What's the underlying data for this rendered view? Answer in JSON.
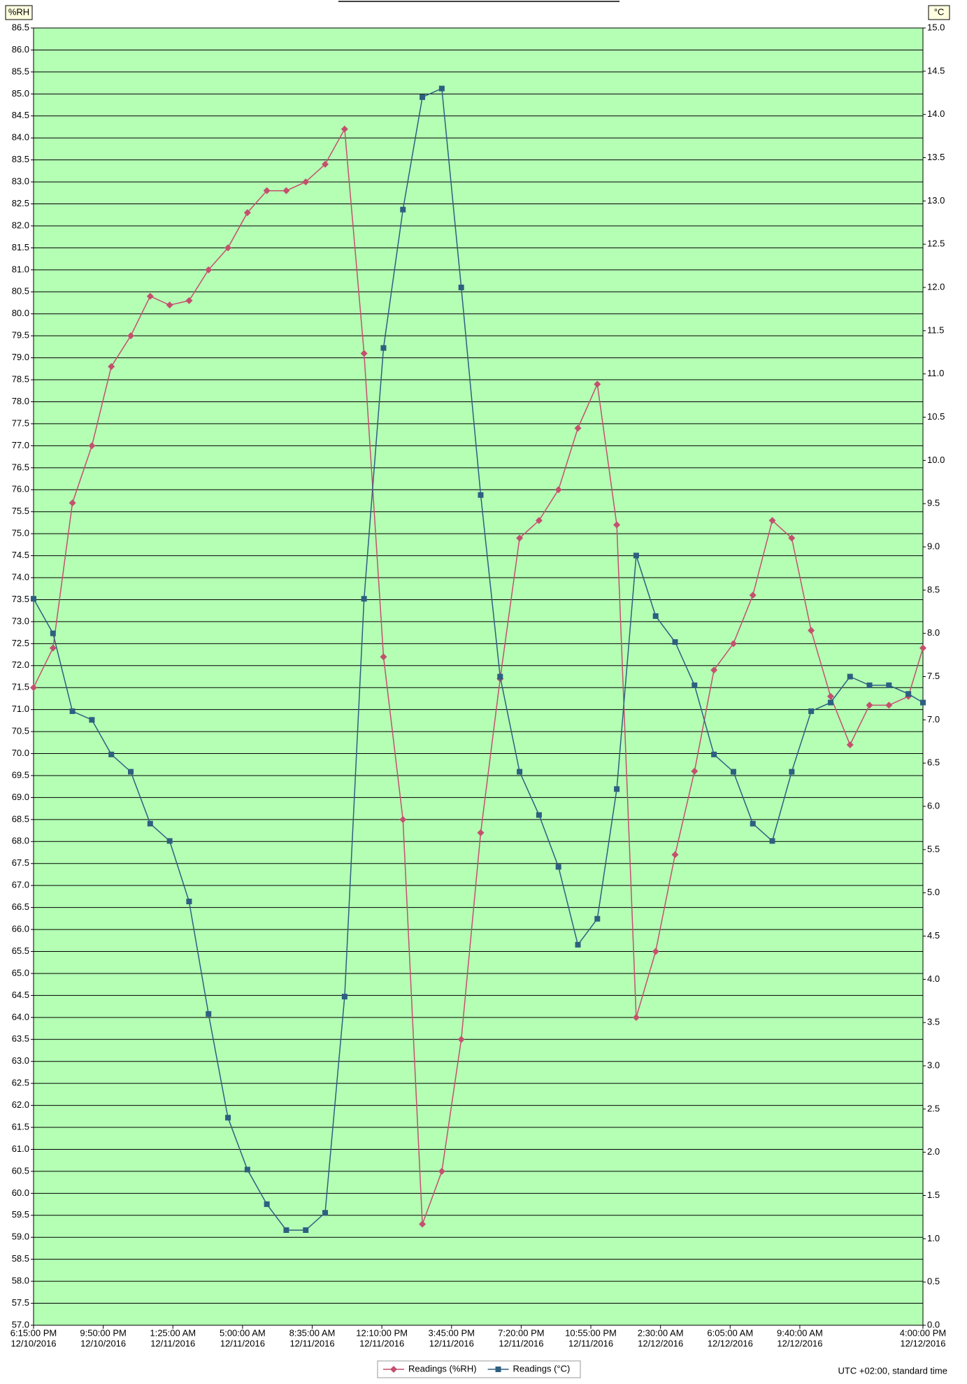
{
  "chart_data": {
    "type": "line",
    "ylabel": "%RH",
    "y2label": "°C",
    "annotation": "UTC +02:00, standard time",
    "legend": "bottom",
    "grid": true,
    "plot_background": "#b4ffb4",
    "x": [
      "2016-12-10 18:15",
      "2016-12-10 19:15",
      "2016-12-10 20:15",
      "2016-12-10 21:15",
      "2016-12-10 22:15",
      "2016-12-10 23:15",
      "2016-12-11 00:15",
      "2016-12-11 01:15",
      "2016-12-11 02:15",
      "2016-12-11 03:15",
      "2016-12-11 04:15",
      "2016-12-11 05:15",
      "2016-12-11 06:15",
      "2016-12-11 07:15",
      "2016-12-11 08:15",
      "2016-12-11 09:15",
      "2016-12-11 10:15",
      "2016-12-11 11:15",
      "2016-12-11 12:15",
      "2016-12-11 13:15",
      "2016-12-11 14:15",
      "2016-12-11 15:15",
      "2016-12-11 16:15",
      "2016-12-11 17:15",
      "2016-12-11 18:15",
      "2016-12-11 19:15",
      "2016-12-11 20:15",
      "2016-12-11 21:15",
      "2016-12-11 22:15",
      "2016-12-11 23:15",
      "2016-12-12 00:15",
      "2016-12-12 01:15",
      "2016-12-12 02:15",
      "2016-12-12 03:15",
      "2016-12-12 04:15",
      "2016-12-12 05:15",
      "2016-12-12 06:15",
      "2016-12-12 07:15",
      "2016-12-12 08:15",
      "2016-12-12 09:15",
      "2016-12-12 10:15",
      "2016-12-12 11:15",
      "2016-12-12 12:15",
      "2016-12-12 13:15",
      "2016-12-12 14:15",
      "2016-12-12 15:15",
      "2016-12-12 16:00"
    ],
    "series": [
      {
        "name": "Readings (%RH)",
        "color": "#c4506e",
        "marker": "diamond",
        "values": [
          71.5,
          72.4,
          75.7,
          77.0,
          78.8,
          79.5,
          80.4,
          80.2,
          80.3,
          81.0,
          81.5,
          82.3,
          82.8,
          82.8,
          83.0,
          83.4,
          84.2,
          79.1,
          72.2,
          68.5,
          59.3,
          60.5,
          63.5,
          68.2,
          71.7,
          74.9,
          75.3,
          76.0,
          77.4,
          78.4,
          75.2,
          64.0,
          65.5,
          67.7,
          69.6,
          71.9,
          72.5,
          73.6,
          75.3,
          74.9,
          72.8,
          71.3,
          70.2,
          71.1,
          71.1,
          71.3,
          72.4
        ]
      },
      {
        "name": "Readings (°C)",
        "color": "#2e5f80",
        "marker": "square",
        "axis": "y2",
        "values": [
          8.4,
          8.0,
          7.1,
          7.0,
          6.6,
          6.4,
          5.8,
          5.6,
          4.9,
          3.6,
          2.4,
          1.8,
          1.4,
          1.1,
          1.1,
          1.3,
          3.8,
          8.4,
          11.3,
          12.9,
          14.2,
          14.3,
          12.0,
          9.6,
          7.5,
          6.4,
          5.9,
          5.3,
          4.4,
          4.7,
          6.2,
          8.9,
          8.2,
          7.9,
          7.4,
          6.6,
          6.4,
          5.8,
          5.6,
          6.4,
          7.1,
          7.2,
          7.5,
          7.4,
          7.4,
          7.3,
          7.2
        ]
      }
    ],
    "xlim": [
      "2016-12-10 18:15",
      "2016-12-12 16:00"
    ],
    "xticks": [
      {
        "value": "2016-12-10 18:15",
        "label": [
          "6:15:00 PM",
          "12/10/2016"
        ]
      },
      {
        "value": "2016-12-10 21:50",
        "label": [
          "9:50:00 PM",
          "12/10/2016"
        ]
      },
      {
        "value": "2016-12-11 01:25",
        "label": [
          "1:25:00 AM",
          "12/11/2016"
        ]
      },
      {
        "value": "2016-12-11 05:00",
        "label": [
          "5:00:00 AM",
          "12/11/2016"
        ]
      },
      {
        "value": "2016-12-11 08:35",
        "label": [
          "8:35:00 AM",
          "12/11/2016"
        ]
      },
      {
        "value": "2016-12-11 12:10",
        "label": [
          "12:10:00 PM",
          "12/11/2016"
        ]
      },
      {
        "value": "2016-12-11 15:45",
        "label": [
          "3:45:00 PM",
          "12/11/2016"
        ]
      },
      {
        "value": "2016-12-11 19:20",
        "label": [
          "7:20:00 PM",
          "12/11/2016"
        ]
      },
      {
        "value": "2016-12-11 22:55",
        "label": [
          "10:55:00 PM",
          "12/11/2016"
        ]
      },
      {
        "value": "2016-12-12 02:30",
        "label": [
          "2:30:00 AM",
          "12/12/2016"
        ]
      },
      {
        "value": "2016-12-12 06:05",
        "label": [
          "6:05:00 AM",
          "12/12/2016"
        ]
      },
      {
        "value": "2016-12-12 09:40",
        "label": [
          "9:40:00 AM",
          "12/12/2016"
        ]
      },
      {
        "value": "2016-12-12 16:00",
        "label": [
          "4:00:00 PM",
          "12/12/2016"
        ]
      }
    ],
    "ylim": [
      57,
      86.5
    ],
    "yticks": [
      {
        "value": 57,
        "label": "57.0"
      },
      {
        "value": 57.5,
        "label": "57.5"
      },
      {
        "value": 58,
        "label": "58.0"
      },
      {
        "value": 58.5,
        "label": "58.5"
      },
      {
        "value": 59,
        "label": "59.0"
      },
      {
        "value": 59.5,
        "label": "59.5"
      },
      {
        "value": 60,
        "label": "60.0"
      },
      {
        "value": 60.5,
        "label": "60.5"
      },
      {
        "value": 61,
        "label": "61.0"
      },
      {
        "value": 61.5,
        "label": "61.5"
      },
      {
        "value": 62,
        "label": "62.0"
      },
      {
        "value": 62.5,
        "label": "62.5"
      },
      {
        "value": 63,
        "label": "63.0"
      },
      {
        "value": 63.5,
        "label": "63.5"
      },
      {
        "value": 64,
        "label": "64.0"
      },
      {
        "value": 64.5,
        "label": "64.5"
      },
      {
        "value": 65,
        "label": "65.0"
      },
      {
        "value": 65.5,
        "label": "65.5"
      },
      {
        "value": 66,
        "label": "66.0"
      },
      {
        "value": 66.5,
        "label": "66.5"
      },
      {
        "value": 67,
        "label": "67.0"
      },
      {
        "value": 67.5,
        "label": "67.5"
      },
      {
        "value": 68,
        "label": "68.0"
      },
      {
        "value": 68.5,
        "label": "68.5"
      },
      {
        "value": 69,
        "label": "69.0"
      },
      {
        "value": 69.5,
        "label": "69.5"
      },
      {
        "value": 70,
        "label": "70.0"
      },
      {
        "value": 70.5,
        "label": "70.5"
      },
      {
        "value": 71,
        "label": "71.0"
      },
      {
        "value": 71.5,
        "label": "71.5"
      },
      {
        "value": 72,
        "label": "72.0"
      },
      {
        "value": 72.5,
        "label": "72.5"
      },
      {
        "value": 73,
        "label": "73.0"
      },
      {
        "value": 73.5,
        "label": "73.5"
      },
      {
        "value": 74,
        "label": "74.0"
      },
      {
        "value": 74.5,
        "label": "74.5"
      },
      {
        "value": 75,
        "label": "75.0"
      },
      {
        "value": 75.5,
        "label": "75.5"
      },
      {
        "value": 76,
        "label": "76.0"
      },
      {
        "value": 76.5,
        "label": "76.5"
      },
      {
        "value": 77,
        "label": "77.0"
      },
      {
        "value": 77.5,
        "label": "77.5"
      },
      {
        "value": 78,
        "label": "78.0"
      },
      {
        "value": 78.5,
        "label": "78.5"
      },
      {
        "value": 79,
        "label": "79.0"
      },
      {
        "value": 79.5,
        "label": "79.5"
      },
      {
        "value": 80,
        "label": "80.0"
      },
      {
        "value": 80.5,
        "label": "80.5"
      },
      {
        "value": 81,
        "label": "81.0"
      },
      {
        "value": 81.5,
        "label": "81.5"
      },
      {
        "value": 82,
        "label": "82.0"
      },
      {
        "value": 82.5,
        "label": "82.5"
      },
      {
        "value": 83,
        "label": "83.0"
      },
      {
        "value": 83.5,
        "label": "83.5"
      },
      {
        "value": 84,
        "label": "84.0"
      },
      {
        "value": 84.5,
        "label": "84.5"
      },
      {
        "value": 85,
        "label": "85.0"
      },
      {
        "value": 85.5,
        "label": "85.5"
      },
      {
        "value": 86,
        "label": "86.0"
      },
      {
        "value": 86.5,
        "label": "86.5"
      }
    ],
    "y2lim": [
      0,
      15
    ],
    "y2ticks": [
      {
        "value": 0,
        "label": "0.0"
      },
      {
        "value": 0.5,
        "label": "0.5"
      },
      {
        "value": 1,
        "label": "1.0"
      },
      {
        "value": 1.5,
        "label": "1.5"
      },
      {
        "value": 2,
        "label": "2.0"
      },
      {
        "value": 2.5,
        "label": "2.5"
      },
      {
        "value": 3,
        "label": "3.0"
      },
      {
        "value": 3.5,
        "label": "3.5"
      },
      {
        "value": 4,
        "label": "4.0"
      },
      {
        "value": 4.5,
        "label": "4.5"
      },
      {
        "value": 5,
        "label": "5.0"
      },
      {
        "value": 5.5,
        "label": "5.5"
      },
      {
        "value": 6,
        "label": "6.0"
      },
      {
        "value": 6.5,
        "label": "6.5"
      },
      {
        "value": 7,
        "label": "7.0"
      },
      {
        "value": 7.5,
        "label": "7.5"
      },
      {
        "value": 8,
        "label": "8.0"
      },
      {
        "value": 8.5,
        "label": "8.5"
      },
      {
        "value": 9,
        "label": "9.0"
      },
      {
        "value": 9.5,
        "label": "9.5"
      },
      {
        "value": 10,
        "label": "10.0"
      },
      {
        "value": 10.5,
        "label": "10.5"
      },
      {
        "value": 11,
        "label": "11.0"
      },
      {
        "value": 11.5,
        "label": "11.5"
      },
      {
        "value": 12,
        "label": "12.0"
      },
      {
        "value": 12.5,
        "label": "12.5"
      },
      {
        "value": 13,
        "label": "13.0"
      },
      {
        "value": 13.5,
        "label": "13.5"
      },
      {
        "value": 14,
        "label": "14.0"
      },
      {
        "value": 14.5,
        "label": "14.5"
      },
      {
        "value": 15,
        "label": "15.0"
      }
    ]
  }
}
